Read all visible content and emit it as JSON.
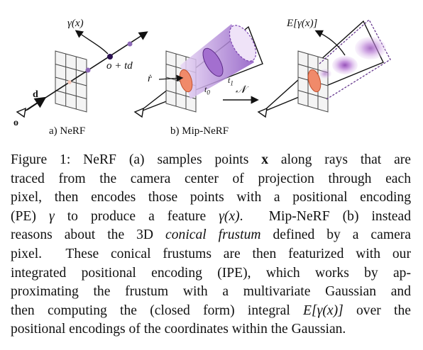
{
  "panels": {
    "nerf": {
      "label": "a) NeRF",
      "gamma_label": "γ(x)",
      "point_label": "o + td",
      "dir_label": "d",
      "origin_label": "o"
    },
    "mipnerf": {
      "label": "b) Mip-NeRF",
      "rdot_label": "ṙ",
      "t0_label": "t",
      "t0_sub": "0",
      "t1_label": "t",
      "t1_sub": "1",
      "N_label": "𝒩",
      "expect_label": "E[γ(x)]"
    }
  },
  "caption": {
    "lines": [
      [
        "Figure 1: NeRF (a) samples points ",
        "x",
        " along rays that are"
      ],
      [
        "traced from the camera center of projection through each"
      ],
      [
        "pixel, then encodes those points with a positional encoding"
      ],
      [
        "(PE) ",
        "γ",
        " to produce a feature ",
        "γ(x)",
        ".  Mip-NeRF (b) instead"
      ],
      [
        "reasons about the 3D ",
        "conical frustum",
        " defined by a camera"
      ],
      [
        "pixel.  These conical frustums are then featurized with our"
      ],
      [
        "integrated positional encoding (IPE), which works by ap-"
      ],
      [
        "proximating the frustum with a multivariate Gaussian and"
      ],
      [
        "then computing the (closed form) integral ",
        "E[γ(x)]",
        " over the"
      ],
      [
        "positional encodings of the coordinates within the Gaussian."
      ]
    ]
  },
  "colors": {
    "purple_dark": "#5b2a86",
    "purple_light": "#c9a4e6",
    "orange": "#f08a6a",
    "grid": "#444444"
  }
}
